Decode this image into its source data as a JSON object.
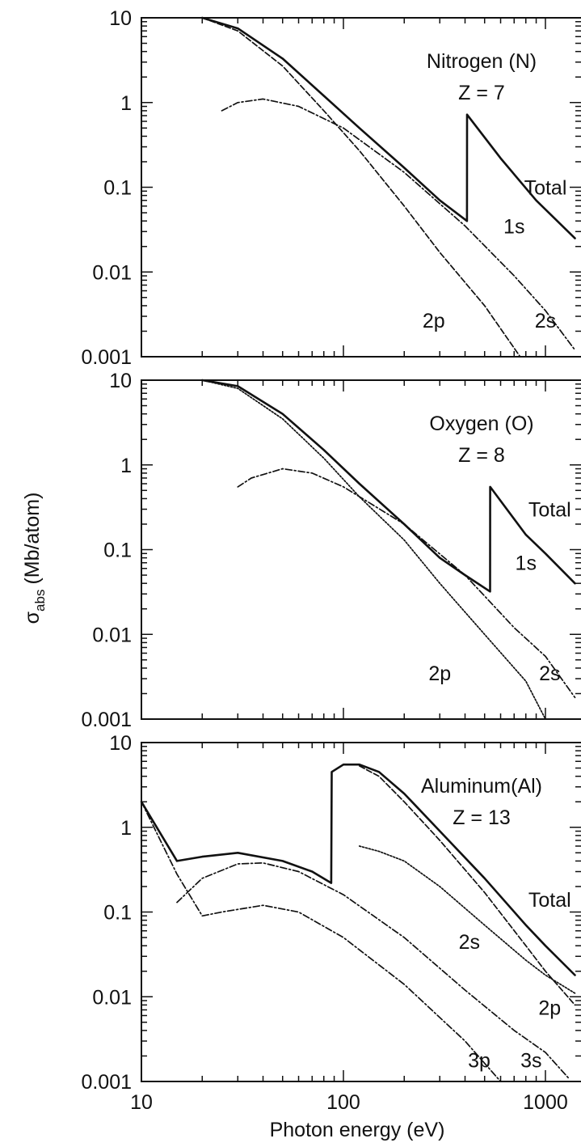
{
  "chart_data": {
    "type": "line",
    "xlabel": "Photon energy (eV)",
    "ylabel_main": "σ",
    "ylabel_sub": "abs",
    "ylabel_unit": "(Mb/atom)",
    "x_scale": "log",
    "y_scale": "log",
    "xlim": [
      10,
      1500
    ],
    "ylim": [
      0.001,
      10
    ],
    "x_ticks": [
      10,
      100,
      1000
    ],
    "x_tick_labels": [
      "10",
      "100",
      "1000"
    ],
    "y_ticks": [
      10,
      1,
      0.1,
      0.01,
      0.001
    ],
    "y_tick_labels": [
      "10",
      "1",
      "0.1",
      "0.01",
      "0.001"
    ],
    "grid": false,
    "panels": [
      {
        "id": "nitrogen",
        "element": "Nitrogen (N)",
        "z_label": "Z = 7",
        "series": [
          {
            "name": "Total",
            "style": "solid-thick",
            "points": [
              [
                20,
                10
              ],
              [
                30,
                7.5
              ],
              [
                50,
                3.3
              ],
              [
                80,
                1.2
              ],
              [
                120,
                0.5
              ],
              [
                200,
                0.17
              ],
              [
                300,
                0.07
              ],
              [
                409,
                0.04
              ],
              [
                409.5,
                0.72
              ],
              [
                600,
                0.22
              ],
              [
                900,
                0.07
              ],
              [
                1400,
                0.025
              ]
            ]
          },
          {
            "name": "2p",
            "style": "dashed",
            "points": [
              [
                20,
                10
              ],
              [
                30,
                7
              ],
              [
                50,
                2.7
              ],
              [
                80,
                0.8
              ],
              [
                120,
                0.27
              ],
              [
                200,
                0.06
              ],
              [
                300,
                0.017
              ],
              [
                500,
                0.004
              ],
              [
                750,
                0.001
              ]
            ]
          },
          {
            "name": "2s",
            "style": "dashdot",
            "points": [
              [
                25,
                0.8
              ],
              [
                30,
                1
              ],
              [
                40,
                1.1
              ],
              [
                60,
                0.9
              ],
              [
                100,
                0.5
              ],
              [
                200,
                0.15
              ],
              [
                400,
                0.035
              ],
              [
                700,
                0.009
              ],
              [
                1000,
                0.0035
              ],
              [
                1400,
                0.0012
              ]
            ]
          },
          {
            "name": "1s",
            "style": "none",
            "points": []
          }
        ],
        "labels": [
          {
            "text": "Total",
            "x": 1000,
            "y": 0.1
          },
          {
            "text": "1s",
            "x": 700,
            "y": 0.035
          },
          {
            "text": "2p",
            "x": 280,
            "y": 0.0027
          },
          {
            "text": "2s",
            "x": 1000,
            "y": 0.0027
          }
        ]
      },
      {
        "id": "oxygen",
        "element": "Oxygen (O)",
        "z_label": "Z = 8",
        "series": [
          {
            "name": "Total",
            "style": "solid-thick",
            "points": [
              [
                20,
                10
              ],
              [
                30,
                8.5
              ],
              [
                50,
                4
              ],
              [
                80,
                1.5
              ],
              [
                120,
                0.6
              ],
              [
                200,
                0.2
              ],
              [
                300,
                0.08
              ],
              [
                400,
                0.05
              ],
              [
                532,
                0.032
              ],
              [
                532.5,
                0.55
              ],
              [
                800,
                0.15
              ],
              [
                1000,
                0.09
              ],
              [
                1400,
                0.04
              ]
            ]
          },
          {
            "name": "2p",
            "style": "dotted",
            "points": [
              [
                20,
                10
              ],
              [
                30,
                8
              ],
              [
                50,
                3.5
              ],
              [
                80,
                1.2
              ],
              [
                120,
                0.42
              ],
              [
                200,
                0.13
              ],
              [
                300,
                0.04
              ],
              [
                500,
                0.01
              ],
              [
                800,
                0.0028
              ],
              [
                1000,
                0.001
              ]
            ]
          },
          {
            "name": "2s",
            "style": "dashdot",
            "points": [
              [
                30,
                0.55
              ],
              [
                35,
                0.7
              ],
              [
                50,
                0.9
              ],
              [
                70,
                0.8
              ],
              [
                100,
                0.55
              ],
              [
                200,
                0.2
              ],
              [
                400,
                0.05
              ],
              [
                700,
                0.012
              ],
              [
                1000,
                0.0055
              ],
              [
                1400,
                0.0018
              ]
            ]
          },
          {
            "name": "1s",
            "style": "none",
            "points": []
          }
        ],
        "labels": [
          {
            "text": "Total",
            "x": 1050,
            "y": 0.3
          },
          {
            "text": "1s",
            "x": 800,
            "y": 0.07
          },
          {
            "text": "2p",
            "x": 300,
            "y": 0.0035
          },
          {
            "text": "2s",
            "x": 1050,
            "y": 0.0035
          }
        ]
      },
      {
        "id": "aluminum",
        "element": "Aluminum(Al)",
        "z_label": "Z = 13",
        "series": [
          {
            "name": "Total",
            "style": "solid-thick",
            "points": [
              [
                10,
                2
              ],
              [
                15,
                0.4
              ],
              [
                20,
                0.45
              ],
              [
                30,
                0.5
              ],
              [
                50,
                0.4
              ],
              [
                70,
                0.3
              ],
              [
                87,
                0.22
              ],
              [
                87.5,
                4.5
              ],
              [
                100,
                5.5
              ],
              [
                120,
                5.5
              ],
              [
                150,
                4.5
              ],
              [
                200,
                2.5
              ],
              [
                300,
                0.9
              ],
              [
                500,
                0.25
              ],
              [
                800,
                0.07
              ],
              [
                1000,
                0.04
              ],
              [
                1400,
                0.018
              ]
            ]
          },
          {
            "name": "2p",
            "style": "dashed",
            "points": [
              [
                120,
                5.3
              ],
              [
                150,
                4
              ],
              [
                200,
                2
              ],
              [
                300,
                0.7
              ],
              [
                500,
                0.17
              ],
              [
                800,
                0.04
              ],
              [
                1000,
                0.02
              ],
              [
                1400,
                0.008
              ]
            ]
          },
          {
            "name": "2s",
            "style": "dotted",
            "points": [
              [
                120,
                0.6
              ],
              [
                150,
                0.52
              ],
              [
                200,
                0.4
              ],
              [
                300,
                0.2
              ],
              [
                500,
                0.07
              ],
              [
                800,
                0.027
              ],
              [
                1000,
                0.018
              ],
              [
                1400,
                0.011
              ]
            ]
          },
          {
            "name": "3s",
            "style": "dashdot",
            "points": [
              [
                15,
                0.13
              ],
              [
                20,
                0.25
              ],
              [
                30,
                0.37
              ],
              [
                40,
                0.38
              ],
              [
                60,
                0.3
              ],
              [
                100,
                0.16
              ],
              [
                200,
                0.05
              ],
              [
                400,
                0.012
              ],
              [
                700,
                0.004
              ],
              [
                1000,
                0.0022
              ],
              [
                1300,
                0.0011
              ]
            ]
          },
          {
            "name": "3p",
            "style": "dashdot",
            "points": [
              [
                10,
                2
              ],
              [
                15,
                0.28
              ],
              [
                20,
                0.09
              ],
              [
                25,
                0.1
              ],
              [
                40,
                0.12
              ],
              [
                60,
                0.1
              ],
              [
                100,
                0.05
              ],
              [
                200,
                0.014
              ],
              [
                400,
                0.003
              ],
              [
                600,
                0.001
              ]
            ]
          }
        ],
        "labels": [
          {
            "text": "Total",
            "x": 1050,
            "y": 0.14
          },
          {
            "text": "2s",
            "x": 420,
            "y": 0.045
          },
          {
            "text": "2p",
            "x": 1050,
            "y": 0.0075
          },
          {
            "text": "3p",
            "x": 470,
            "y": 0.0018
          },
          {
            "text": "3s",
            "x": 850,
            "y": 0.0018
          }
        ]
      }
    ]
  }
}
